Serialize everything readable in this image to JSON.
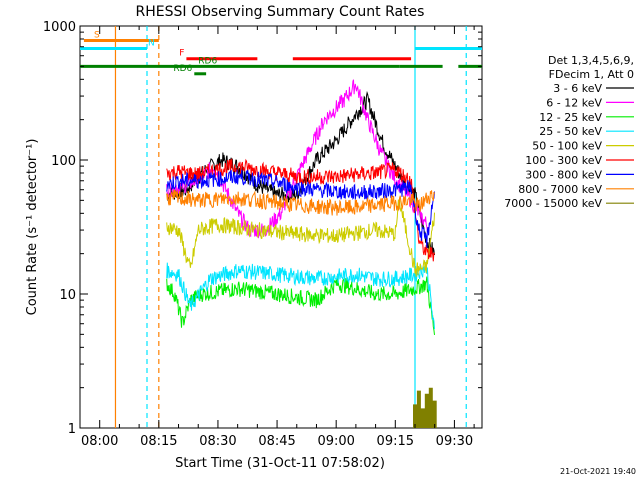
{
  "chart_data": {
    "type": "line",
    "title": "RHESSI Observing Summary Count Rates",
    "xlabel": "Start Time (31-Oct-11 07:58:02)",
    "ylabel": "Count Rate (s⁻¹ detector⁻¹)",
    "y_scale": "log",
    "ylim": [
      1,
      1000
    ],
    "xlim": [
      "07:55",
      "09:37"
    ],
    "x_ticks": [
      "08:00",
      "08:15",
      "08:30",
      "08:45",
      "09:00",
      "09:15",
      "09:30"
    ],
    "y_ticks": [
      {
        "value": 1,
        "label": "1"
      },
      {
        "value": 10,
        "label": "10"
      },
      {
        "value": 100,
        "label": "100"
      },
      {
        "value": 1000,
        "label": "1000"
      }
    ],
    "legend_position": "right",
    "legend_header": [
      "Det 1,3,4,5,6,9,",
      "FDecim 1, Att 0"
    ],
    "footer_date": "21-Oct-2021 19:40",
    "state_bars": [
      {
        "label": "S",
        "color": "#ff8000",
        "value": 780,
        "segments": [
          [
            "07:56",
            "08:15"
          ]
        ]
      },
      {
        "label": "N",
        "color": "#00e5ff",
        "value": 680,
        "segments": [
          [
            "07:55",
            "08:12"
          ],
          [
            "09:20",
            "09:37"
          ]
        ]
      },
      {
        "label": "F",
        "color": "#ff0000",
        "value": 570,
        "segments": [
          [
            "08:22",
            "08:40"
          ],
          [
            "08:49",
            "09:19"
          ]
        ]
      },
      {
        "label": "RD6",
        "color": "#008000",
        "value": 500,
        "segments": [
          [
            "07:55",
            "09:16"
          ],
          [
            "09:16",
            "09:27"
          ],
          [
            "09:31",
            "09:37"
          ]
        ]
      },
      {
        "label": "RD6",
        "color": "#008000",
        "value": 440,
        "segments": [
          [
            "08:24",
            "08:27"
          ]
        ]
      }
    ],
    "vertical_markers": [
      {
        "time": "08:04",
        "color": "#ff8000",
        "dashed": false
      },
      {
        "time": "08:15",
        "color": "#ff8000",
        "dashed": true
      },
      {
        "time": "08:12",
        "color": "#00e5ff",
        "dashed": true
      },
      {
        "time": "09:20",
        "color": "#00e5ff",
        "dashed": false
      },
      {
        "time": "09:33",
        "color": "#00e5ff",
        "dashed": true
      }
    ],
    "series": [
      {
        "name": "3 - 6 keV",
        "color": "#000000",
        "x": [
          "08:17",
          "08:22",
          "08:27",
          "08:31",
          "08:35",
          "08:40",
          "08:45",
          "08:50",
          "08:55",
          "09:00",
          "09:05",
          "09:08",
          "09:12",
          "09:17",
          "09:20",
          "09:23",
          "09:25"
        ],
        "y": [
          55,
          60,
          85,
          100,
          90,
          65,
          55,
          55,
          100,
          140,
          220,
          280,
          130,
          70,
          55,
          25,
          20
        ]
      },
      {
        "name": "6 - 12 keV",
        "color": "#ff00ff",
        "x": [
          "08:17",
          "08:22",
          "08:26",
          "08:29",
          "08:32",
          "08:35",
          "08:38",
          "08:42",
          "08:46",
          "08:49",
          "08:52",
          "08:57",
          "09:02",
          "09:05",
          "09:08",
          "09:11",
          "09:14",
          "09:17",
          "09:19",
          "09:21",
          "09:24"
        ],
        "y": [
          60,
          65,
          75,
          90,
          60,
          40,
          30,
          30,
          40,
          65,
          100,
          200,
          280,
          370,
          200,
          120,
          80,
          60,
          50,
          40,
          30
        ]
      },
      {
        "name": "12 - 25 keV",
        "color": "#00ee00",
        "x": [
          "08:17",
          "08:19",
          "08:21",
          "08:23",
          "08:26",
          "08:35",
          "08:45",
          "08:55",
          "09:00",
          "09:05",
          "09:10",
          "09:15",
          "09:20",
          "09:23",
          "09:25"
        ],
        "y": [
          12,
          10,
          6,
          9,
          10,
          11,
          10,
          9,
          12,
          11,
          10,
          10,
          11,
          12,
          5
        ]
      },
      {
        "name": "25 - 50 keV",
        "color": "#00e5ff",
        "x": [
          "08:17",
          "08:20",
          "08:23",
          "08:28",
          "08:35",
          "08:45",
          "08:55",
          "09:05",
          "09:10",
          "09:15",
          "09:20",
          "09:23",
          "09:25"
        ],
        "y": [
          15,
          14,
          8,
          13,
          15,
          14,
          13,
          14,
          13,
          13,
          14,
          16,
          5
        ]
      },
      {
        "name": "50 - 100 keV",
        "color": "#cccc00",
        "x": [
          "08:17",
          "08:20",
          "08:23",
          "08:25",
          "08:30",
          "08:40",
          "08:50",
          "09:00",
          "09:10",
          "09:15",
          "09:16",
          "09:20",
          "09:23",
          "09:25"
        ],
        "y": [
          32,
          30,
          15,
          30,
          33,
          30,
          28,
          27,
          30,
          28,
          50,
          15,
          16,
          40
        ]
      },
      {
        "name": "100 - 300 keV",
        "color": "#ff0000",
        "x": [
          "08:17",
          "08:20",
          "08:25",
          "08:30",
          "08:35",
          "08:40",
          "08:45",
          "08:50",
          "09:00",
          "09:05",
          "09:10",
          "09:15",
          "09:19",
          "09:21",
          "09:23",
          "09:25"
        ],
        "y": [
          80,
          82,
          78,
          85,
          90,
          85,
          80,
          75,
          75,
          78,
          80,
          85,
          70,
          25,
          20,
          20
        ]
      },
      {
        "name": "300 - 800 keV",
        "color": "#0000ff",
        "x": [
          "08:17",
          "08:20",
          "08:25",
          "08:30",
          "08:35",
          "08:40",
          "08:45",
          "08:50",
          "09:00",
          "09:05",
          "09:10",
          "09:15",
          "09:19",
          "09:21",
          "09:23",
          "09:25"
        ],
        "y": [
          65,
          70,
          70,
          72,
          75,
          72,
          68,
          62,
          58,
          57,
          58,
          60,
          62,
          30,
          25,
          60
        ]
      },
      {
        "name": "800 - 7000 keV",
        "color": "#ff8000",
        "x": [
          "08:17",
          "08:20",
          "08:25",
          "08:30",
          "08:35",
          "08:40",
          "08:45",
          "08:50",
          "09:00",
          "09:05",
          "09:10",
          "09:15",
          "09:19",
          "09:21",
          "09:24",
          "09:25"
        ],
        "y": [
          52,
          52,
          50,
          51,
          52,
          50,
          48,
          46,
          44,
          44,
          46,
          48,
          50,
          45,
          55,
          55
        ]
      },
      {
        "name": "7000 - 15000 keV",
        "color": "#808000",
        "x": [
          "09:20",
          "09:21",
          "09:22",
          "09:23",
          "09:24",
          "09:25"
        ],
        "y": [
          1.5,
          1.9,
          1.4,
          1.8,
          2.0,
          1.6
        ]
      }
    ]
  }
}
